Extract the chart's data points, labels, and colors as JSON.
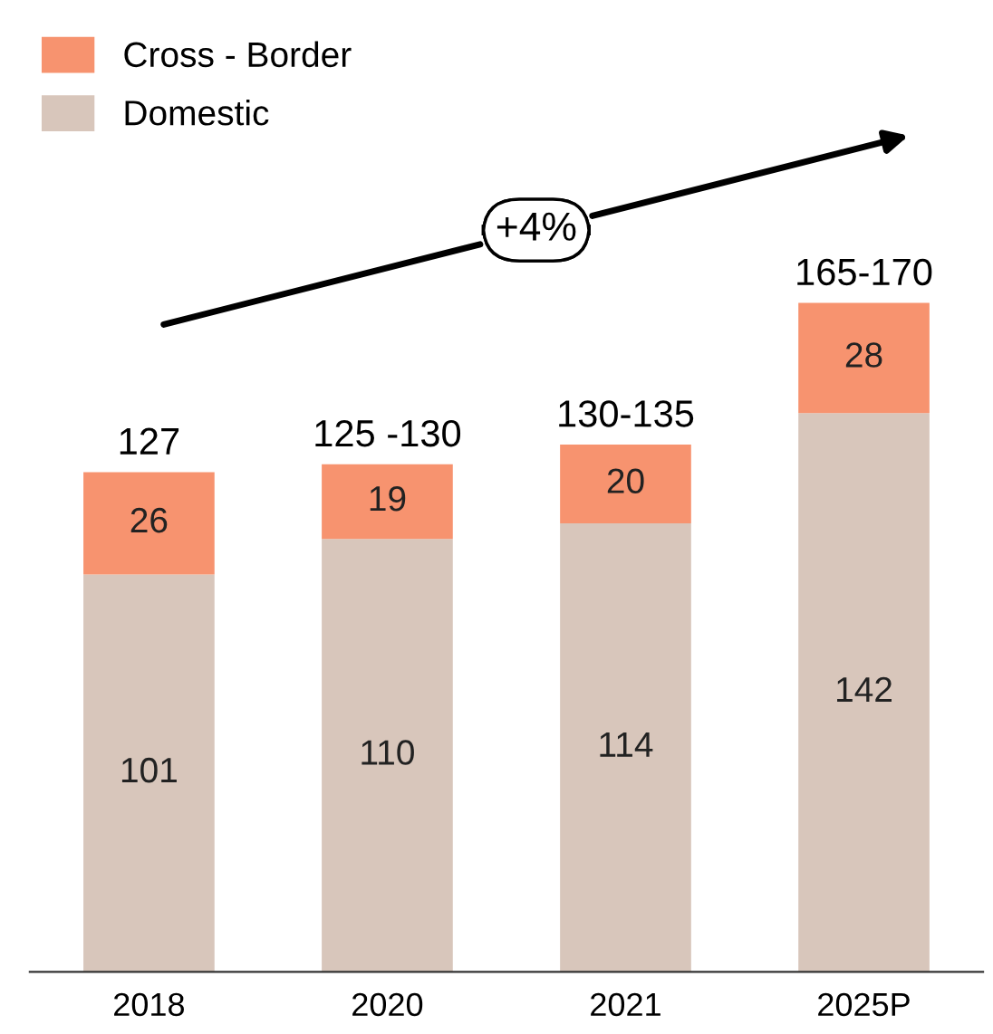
{
  "chart_data": {
    "type": "bar",
    "stacked": true,
    "categories": [
      "2018",
      "2020",
      "2021",
      "2025P"
    ],
    "series": [
      {
        "name": "Domestic",
        "color": "#d8c6bb",
        "values": [
          101,
          110,
          114,
          142
        ]
      },
      {
        "name": "Cross - Border",
        "color": "#f7936f",
        "values": [
          26,
          19,
          20,
          28
        ]
      }
    ],
    "data_labels": true,
    "totals": [
      "127",
      "125 -130",
      "130-135",
      "165-170"
    ],
    "annotations": [
      "+4%"
    ],
    "legend": "top left",
    "grid": false
  }
}
